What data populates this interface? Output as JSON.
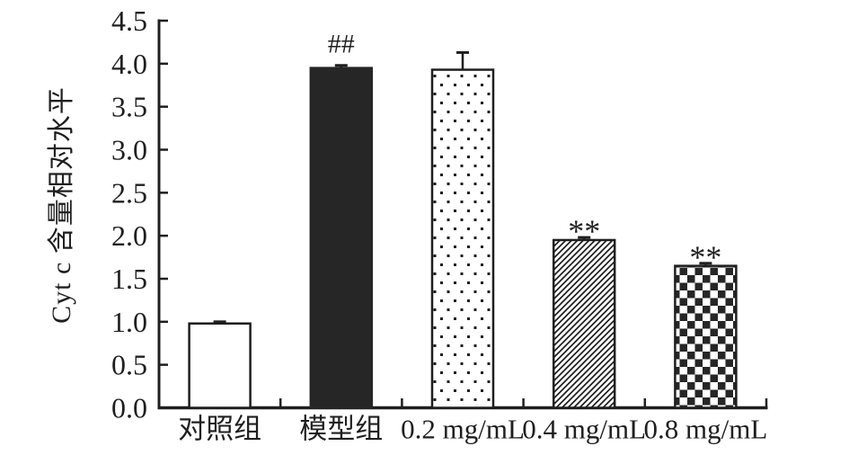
{
  "figure": {
    "background": "#ffffff",
    "ink": "#1f1f1f",
    "solid_bar_fill": "#262626"
  },
  "chart_data": {
    "type": "bar",
    "title": "",
    "xlabel": "",
    "ylabel": "Cyt c 含量相对水平",
    "categories": [
      "对照组",
      "模型组",
      "0.2 mg/mL",
      "0.4 mg/mL",
      "0.8 mg/mL"
    ],
    "values": [
      0.98,
      3.95,
      3.93,
      1.95,
      1.65
    ],
    "errors_upper": [
      0.02,
      0.03,
      0.2,
      0.03,
      0.03
    ],
    "annotations": [
      "",
      "##",
      "",
      "**",
      "**"
    ],
    "bar_patterns": [
      "plain-white",
      "solid-dark",
      "dots",
      "diagonal-hatch",
      "checkerboard"
    ],
    "ylim": [
      0,
      4.5
    ],
    "ytick_step": 0.5,
    "ytick_labels": [
      "0.0",
      "0.5",
      "1.0",
      "1.5",
      "2.0",
      "2.5",
      "3.0",
      "3.5",
      "4.0",
      "4.5"
    ],
    "grid": false,
    "legend_position": "none"
  }
}
